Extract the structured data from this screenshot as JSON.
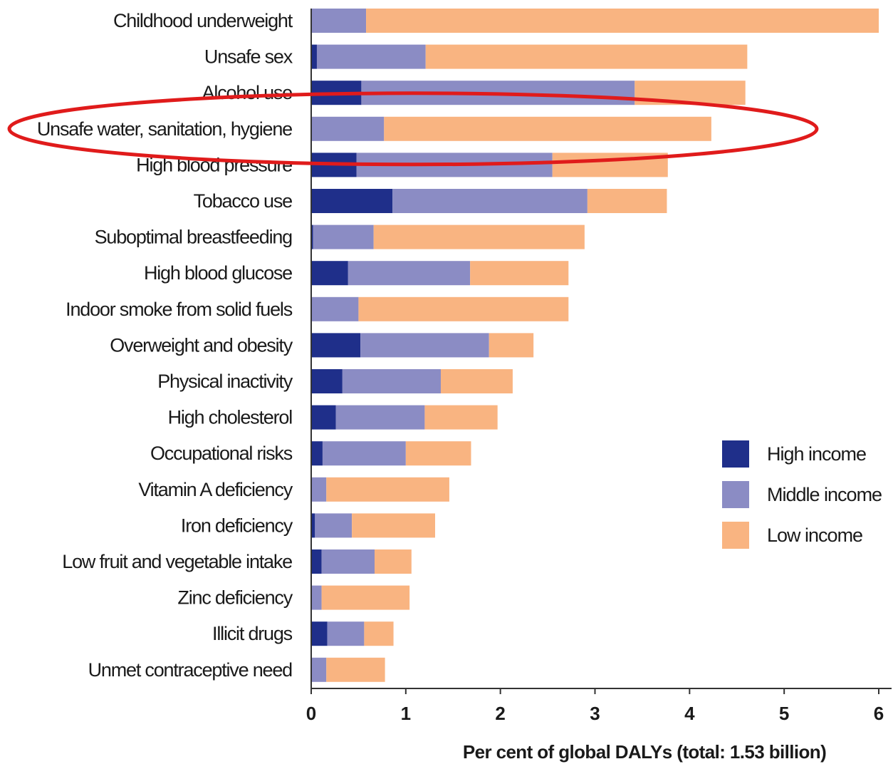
{
  "chart_data": {
    "type": "bar",
    "orientation": "horizontal",
    "stacked": true,
    "xlabel": "Per cent of global DALYs (total: 1.53 billion)",
    "xlim": [
      0,
      6
    ],
    "xticks": [
      "0",
      "1",
      "2",
      "3",
      "4",
      "5",
      "6"
    ],
    "categories": [
      "Childhood underweight",
      "Unsafe sex",
      "Alcohol use",
      "Unsafe water, sanitation, hygiene",
      "High blood pressure",
      "Tobacco use",
      "Suboptimal breastfeeding",
      "High blood glucose",
      "Indoor smoke from solid fuels",
      "Overweight and obesity",
      "Physical inactivity",
      "High cholesterol",
      "Occupational risks",
      "Vitamin A deficiency",
      "Iron deficiency",
      "Low fruit and vegetable intake",
      "Zinc deficiency",
      "Illicit drugs",
      "Unmet contraceptive need"
    ],
    "series": [
      {
        "name": "High income",
        "color": "#1f2f8a",
        "values": [
          0.0,
          0.06,
          0.53,
          0.0,
          0.48,
          0.86,
          0.02,
          0.39,
          0.0,
          0.52,
          0.33,
          0.26,
          0.12,
          0.0,
          0.04,
          0.11,
          0.0,
          0.17,
          0.0
        ]
      },
      {
        "name": "Middle income",
        "color": "#8b8cc4",
        "values": [
          0.58,
          1.15,
          2.89,
          0.77,
          2.07,
          2.06,
          0.64,
          1.29,
          0.5,
          1.36,
          1.04,
          0.94,
          0.88,
          0.16,
          0.39,
          0.56,
          0.11,
          0.39,
          0.16
        ]
      },
      {
        "name": "Low income",
        "color": "#f9b481",
        "values": [
          5.42,
          3.4,
          1.17,
          3.46,
          1.22,
          0.84,
          2.23,
          1.04,
          2.22,
          0.47,
          0.76,
          0.77,
          0.69,
          1.3,
          0.88,
          0.39,
          0.93,
          0.31,
          0.62
        ]
      }
    ],
    "legend_position": "right",
    "grid": false,
    "highlight": {
      "category": "Unsafe water, sanitation, hygiene",
      "shape": "ellipse",
      "color": "#e01b1b"
    }
  }
}
